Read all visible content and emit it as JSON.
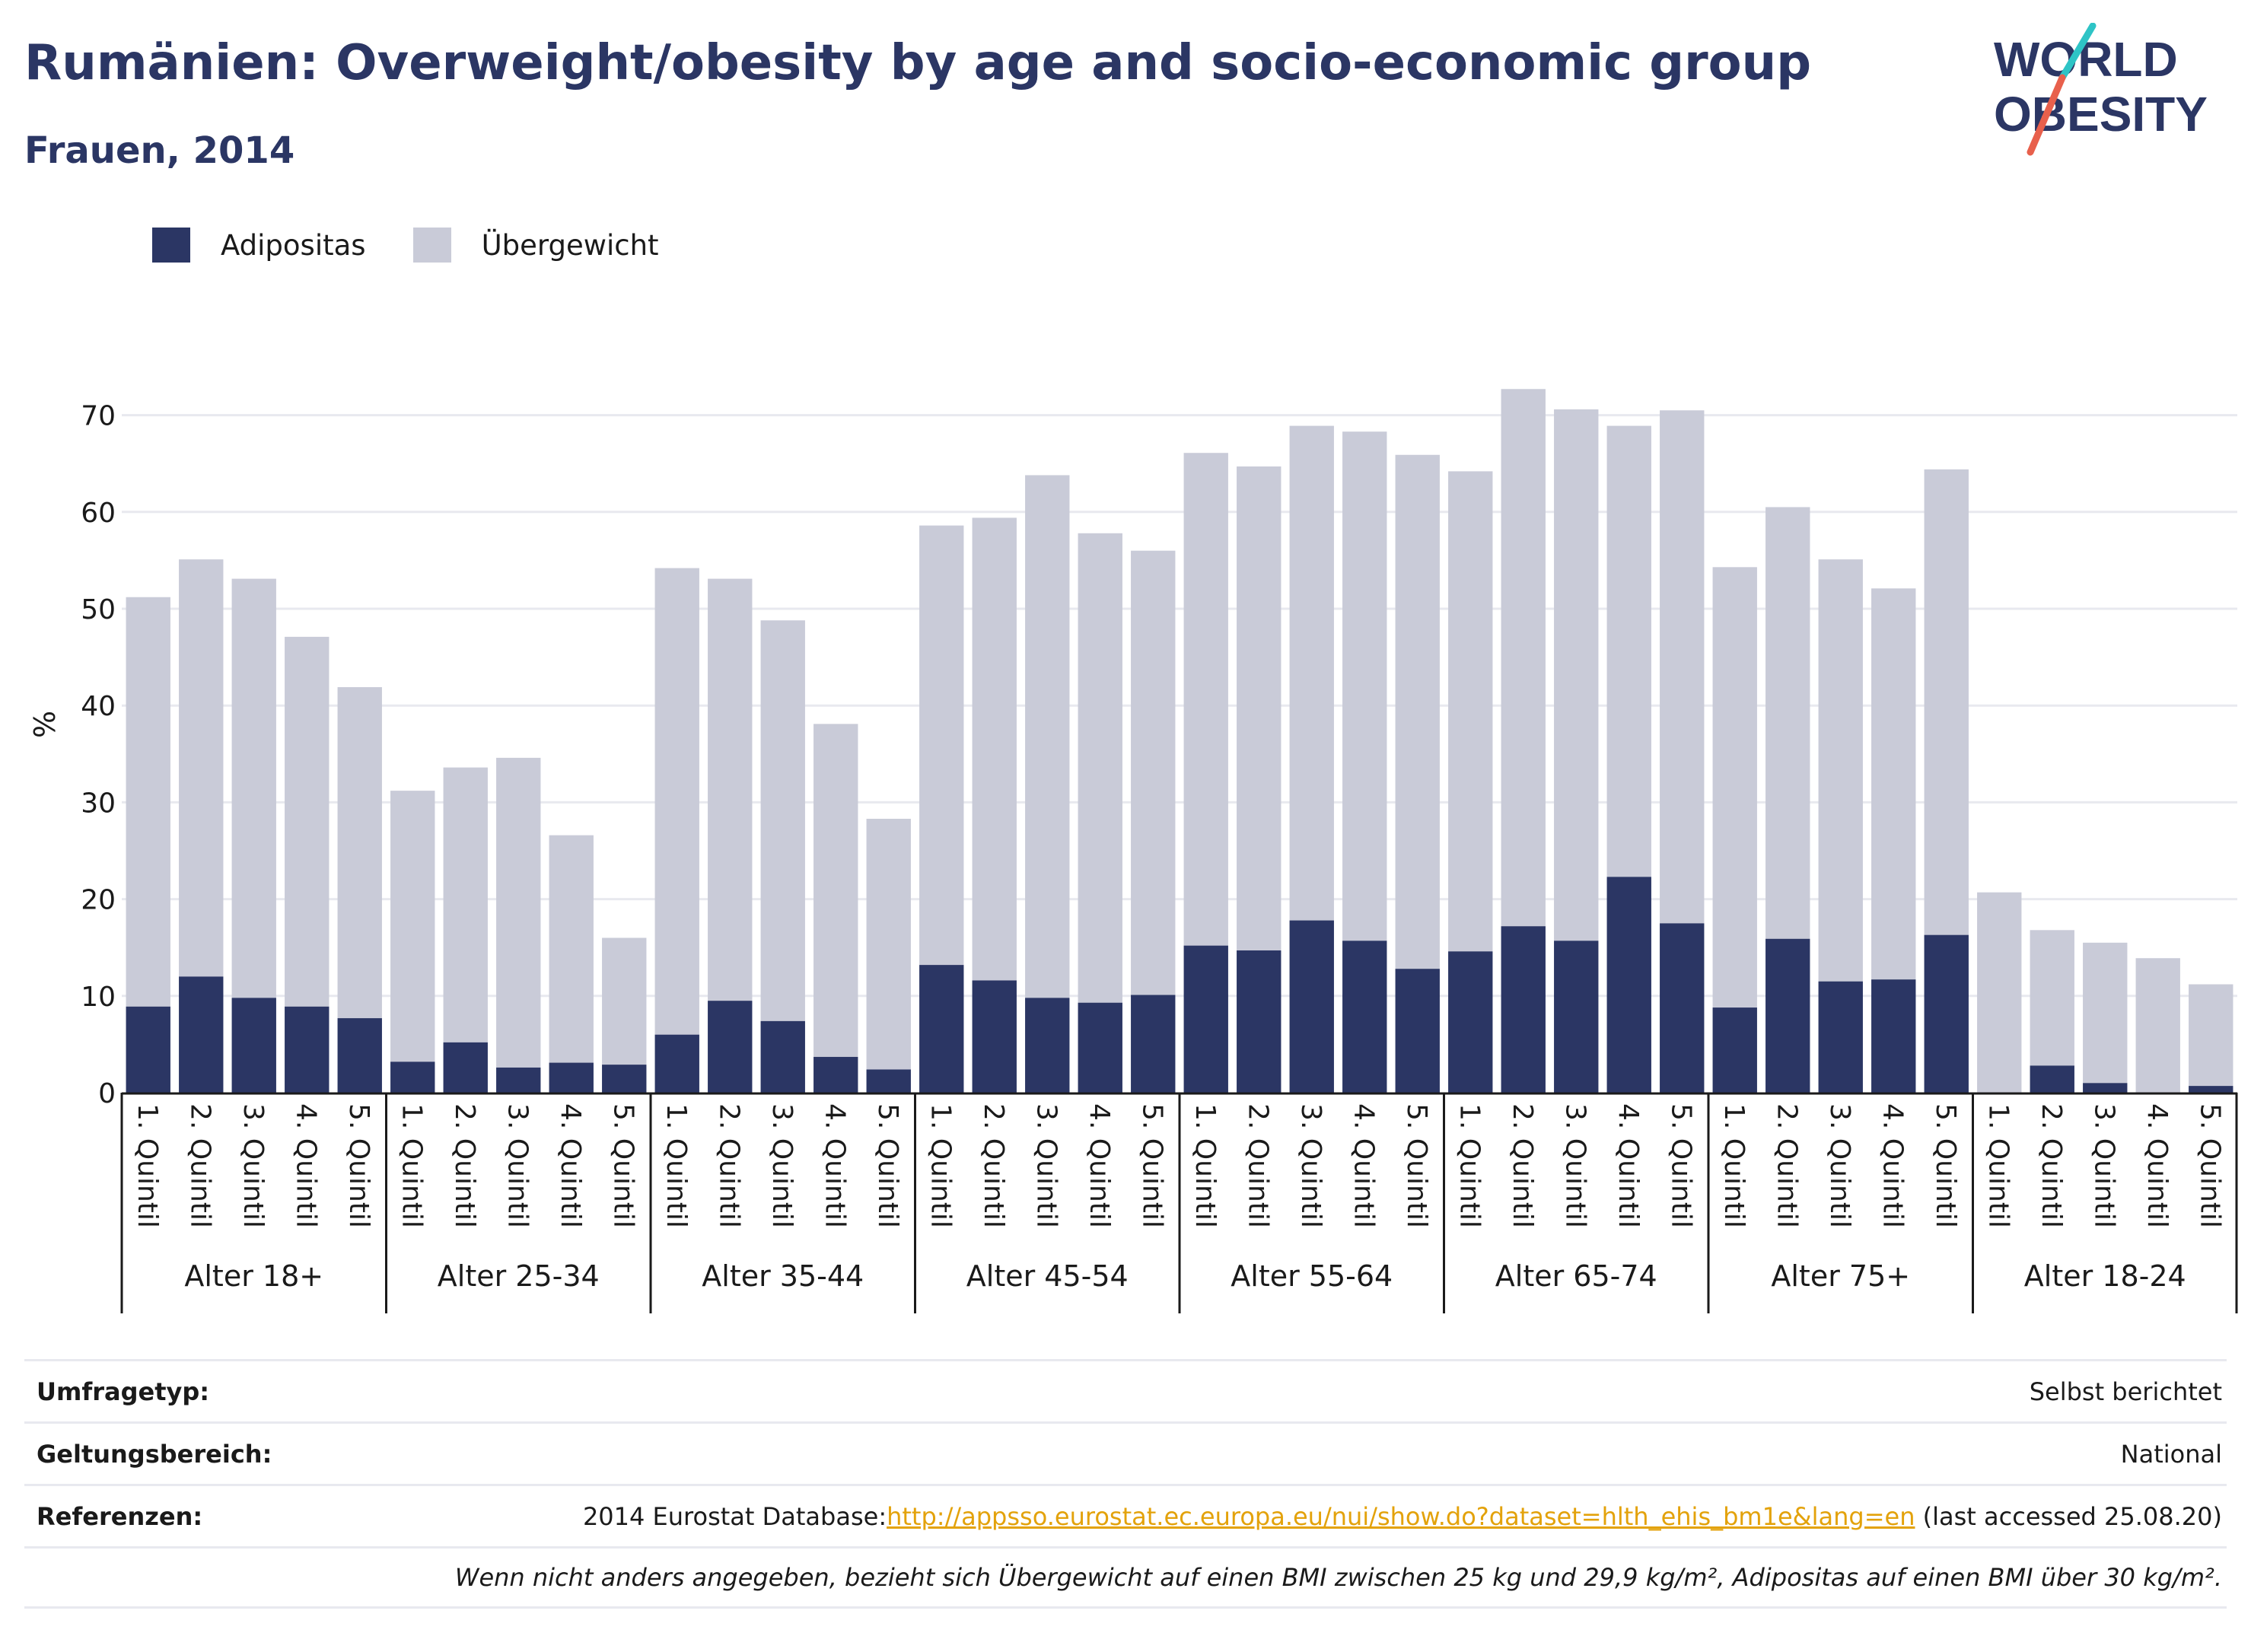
{
  "header": {
    "title": "Rumänien: Overweight/obesity by age and socio-economic group",
    "subtitle": "Frauen, 2014"
  },
  "logo": {
    "line1": "WORLD",
    "line2": "OBESITY"
  },
  "legend": {
    "items": [
      "Adipositas",
      "Übergewicht"
    ]
  },
  "colors": {
    "obesity": "#2b3664",
    "overweight": "#c9cbd8",
    "accent_teal": "#2ec4c6",
    "accent_red": "#e8604c"
  },
  "chart_data": {
    "type": "bar",
    "stacked": true,
    "ylabel": "%",
    "ylim": [
      0,
      75
    ],
    "yticks": [
      0,
      10,
      20,
      30,
      40,
      50,
      60,
      70
    ],
    "grid": true,
    "legend_placement": "top-left",
    "groups": [
      {
        "label": "Alter 18+",
        "categories": [
          "1. Quintil",
          "2. Quintil",
          "3. Quintil",
          "4. Quintil",
          "5. Quintil"
        ],
        "obesity": [
          8.9,
          12.0,
          9.8,
          8.9,
          7.7
        ],
        "total": [
          51.2,
          55.1,
          53.1,
          47.1,
          41.9
        ]
      },
      {
        "label": "Alter 25-34",
        "categories": [
          "1. Quintil",
          "2. Quintil",
          "3. Quintil",
          "4. Quintil",
          "5. Quintil"
        ],
        "obesity": [
          3.2,
          5.2,
          2.6,
          3.1,
          2.9
        ],
        "total": [
          31.2,
          33.6,
          34.6,
          26.6,
          16.0
        ]
      },
      {
        "label": "Alter 35-44",
        "categories": [
          "1. Quintil",
          "2. Quintil",
          "3. Quintil",
          "4. Quintil",
          "5. Quintil"
        ],
        "obesity": [
          6.0,
          9.5,
          7.4,
          3.7,
          2.4
        ],
        "total": [
          54.2,
          53.1,
          48.8,
          38.1,
          28.3
        ]
      },
      {
        "label": "Alter 45-54",
        "categories": [
          "1. Quintil",
          "2. Quintil",
          "3. Quintil",
          "4. Quintil",
          "5. Quintil"
        ],
        "obesity": [
          13.2,
          11.6,
          9.8,
          9.3,
          10.1
        ],
        "total": [
          58.6,
          59.4,
          63.8,
          57.8,
          56.0
        ]
      },
      {
        "label": "Alter 55-64",
        "categories": [
          "1. Quintil",
          "2. Quintil",
          "3. Quintil",
          "4. Quintil",
          "5. Quintil"
        ],
        "obesity": [
          15.2,
          14.7,
          17.8,
          15.7,
          12.8
        ],
        "total": [
          66.1,
          64.7,
          68.9,
          68.3,
          65.9
        ]
      },
      {
        "label": "Alter 65-74",
        "categories": [
          "1. Quintil",
          "2. Quintil",
          "3. Quintil",
          "4. Quintil",
          "5. Quintil"
        ],
        "obesity": [
          14.6,
          17.2,
          15.7,
          22.3,
          17.5
        ],
        "total": [
          64.2,
          72.7,
          70.6,
          68.9,
          70.5
        ]
      },
      {
        "label": "Alter 75+",
        "categories": [
          "1. Quintil",
          "2. Quintil",
          "3. Quintil",
          "4. Quintil",
          "5. Quintil"
        ],
        "obesity": [
          8.8,
          15.9,
          11.5,
          11.7,
          16.3
        ],
        "total": [
          54.3,
          60.5,
          55.1,
          52.1,
          64.4
        ]
      },
      {
        "label": "Alter 18-24",
        "categories": [
          "1. Quintil",
          "2. Quintil",
          "3. Quintil",
          "4. Quintil",
          "5. Quintil"
        ],
        "obesity": [
          0,
          2.8,
          1.0,
          0,
          0.7
        ],
        "total": [
          20.7,
          16.8,
          15.5,
          13.9,
          11.2
        ]
      }
    ]
  },
  "info": {
    "survey_label": "Umfragetyp:",
    "survey_value": "Selbst berichtet",
    "scope_label": "Geltungsbereich:",
    "scope_value": "National",
    "ref_label": "Referenzen:",
    "ref_prefix": "2014 Eurostat Database:",
    "ref_link": "http://appsso.eurostat.ec.europa.eu/nui/show.do?dataset=hlth_ehis_bm1e&lang=en",
    "ref_suffix": " (last accessed 25.08.20)",
    "note": "Wenn nicht anders angegeben, bezieht sich Übergewicht auf einen BMI zwischen 25 kg und 29,9 kg/m², Adipositas auf einen BMI über 30 kg/m²."
  }
}
